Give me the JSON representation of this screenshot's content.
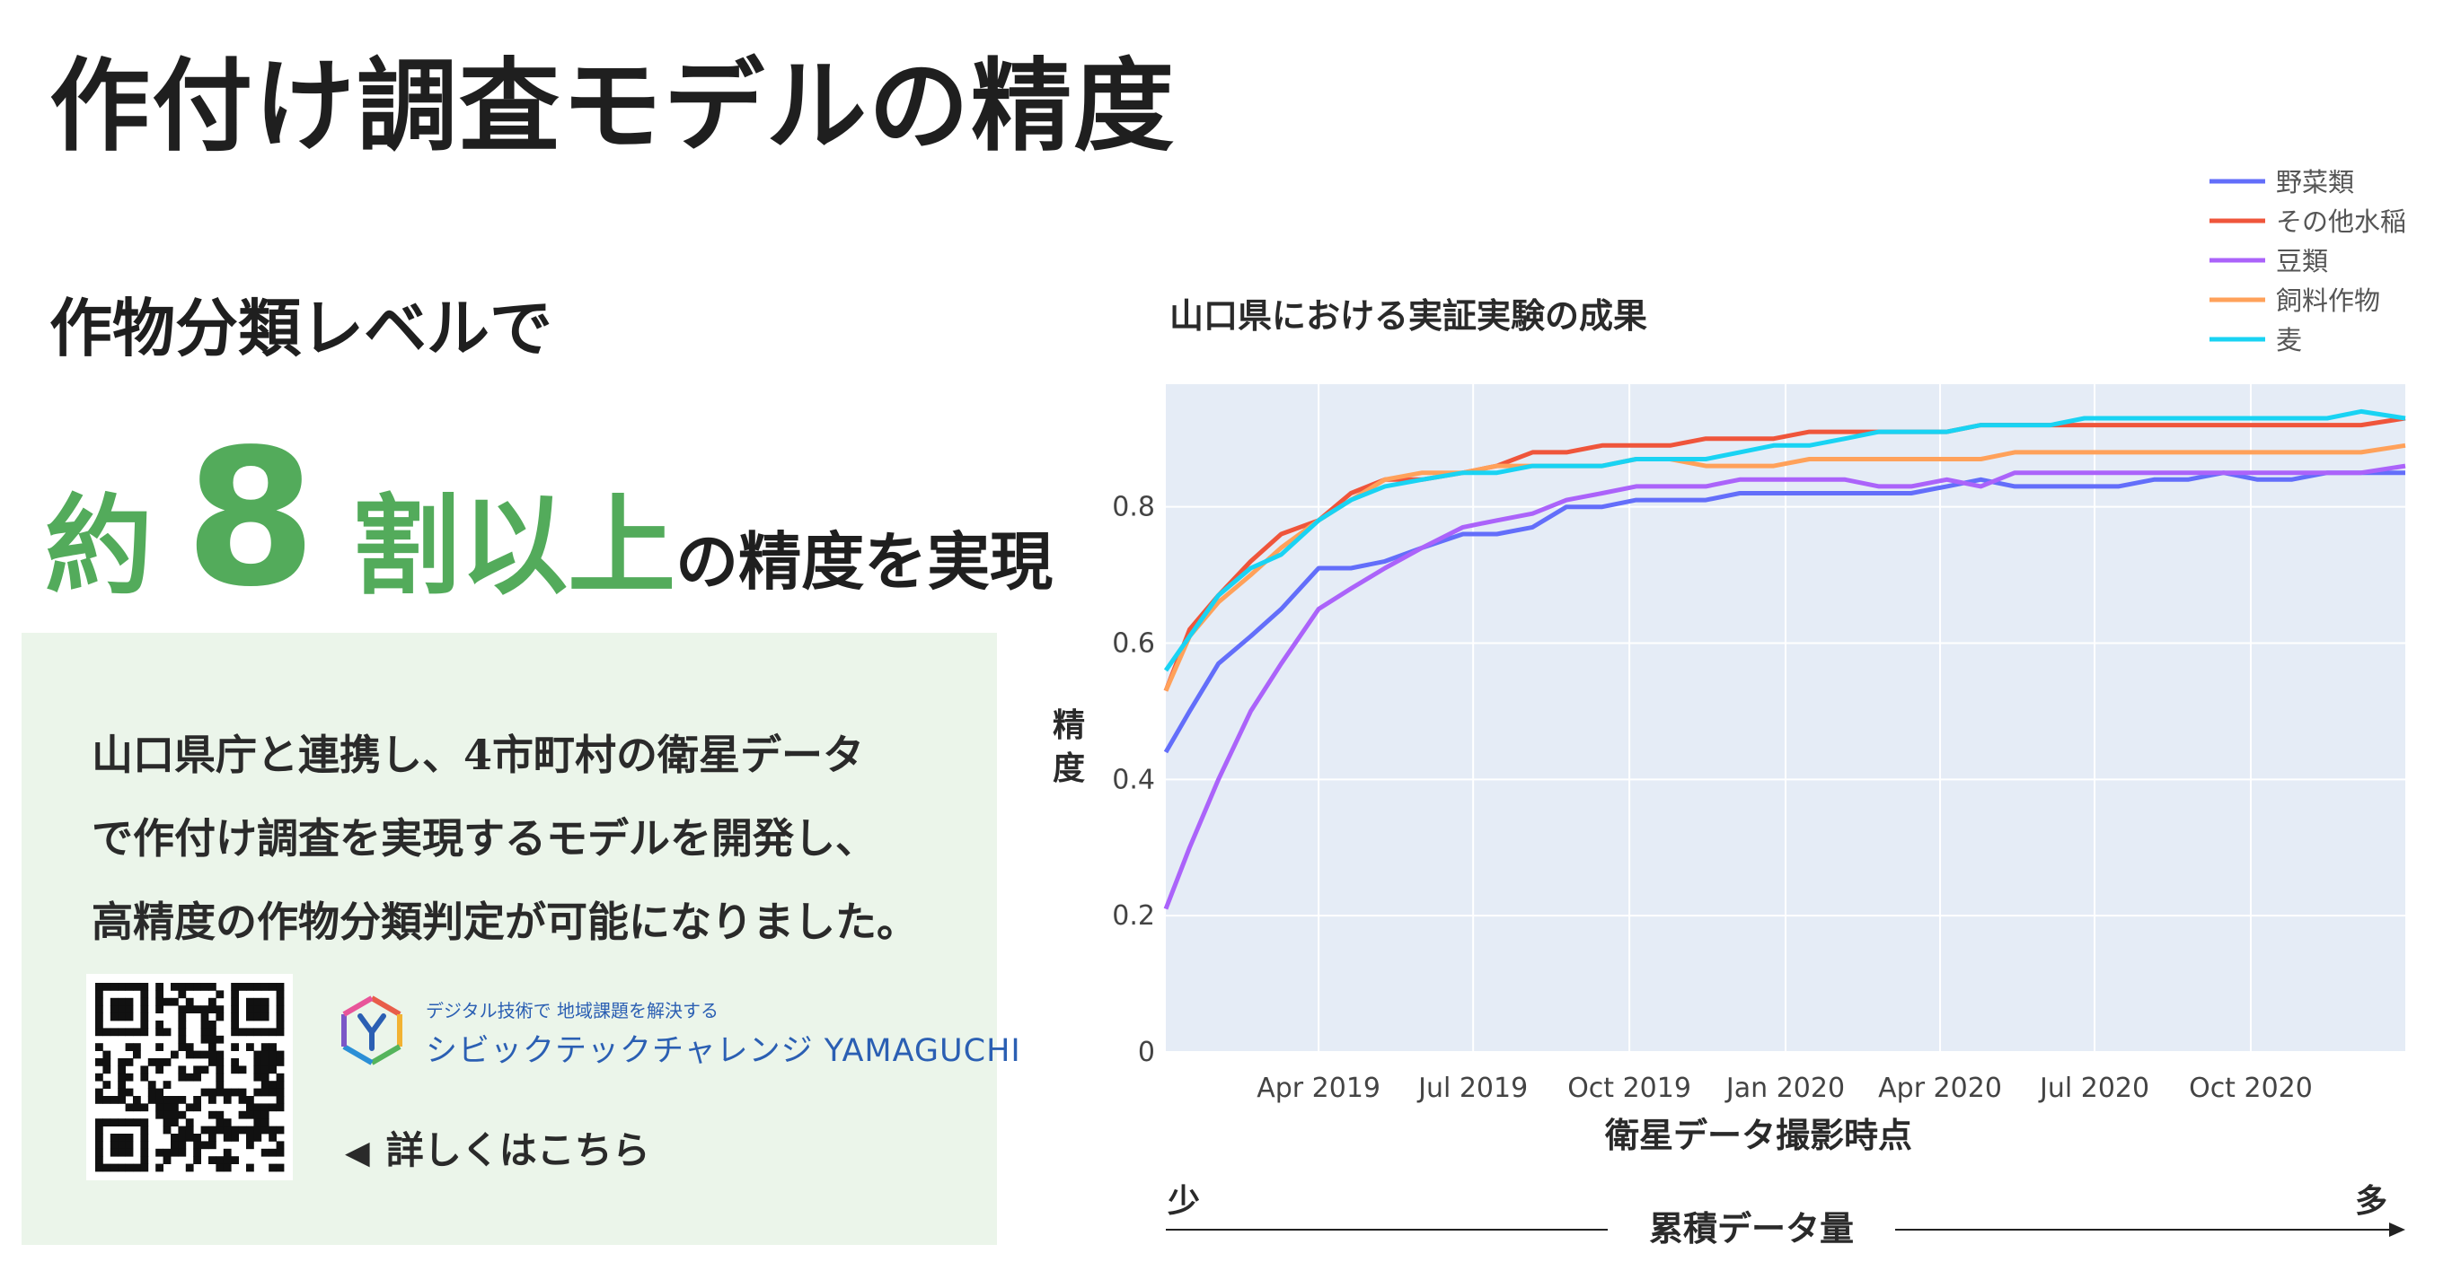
{
  "page": {
    "title": "作付け調査モデルの精度",
    "lead": "作物分類レベルで",
    "headline_prefix": "約",
    "headline_number": "8",
    "headline_unit": "割以上",
    "headline_suffix": "の精度を実現",
    "description_lines": [
      "山口県庁と連携し、4市町村の衛星データ",
      "で作付け調査を実現するモデルを開発し、",
      "高精度の作物分類判定が可能になりました。"
    ],
    "brand_tagline": "デジタル技術で 地域課題を解決する",
    "brand_name": "シビックテックチャレンジ YAMAGUCHI",
    "more_link": "詳しくはこちら",
    "more_icon": "left-triangle-icon",
    "accent_green": "#53ab5b",
    "brand_blue": "#2b5fb3"
  },
  "chart_data": {
    "type": "line",
    "title": "山口県における実証実験の成果",
    "xlabel": "衛星データ撮影時点",
    "ylabel": "精度",
    "x_ticks": [
      "Apr 2019",
      "Jul 2019",
      "Oct 2019",
      "Jan 2020",
      "Apr 2020",
      "Jul 2020",
      "Oct 2020"
    ],
    "y_ticks": [
      "0",
      "0.2",
      "0.4",
      "0.6",
      "0.8"
    ],
    "ylim": [
      0,
      0.98
    ],
    "x": [
      "2019-01-01",
      "2019-01-15",
      "2019-02-01",
      "2019-02-20",
      "2019-03-10",
      "2019-04-01",
      "2019-04-20",
      "2019-05-10",
      "2019-06-01",
      "2019-06-25",
      "2019-07-15",
      "2019-08-05",
      "2019-08-25",
      "2019-09-15",
      "2019-10-05",
      "2019-10-25",
      "2019-11-15",
      "2019-12-05",
      "2019-12-25",
      "2020-01-15",
      "2020-02-05",
      "2020-02-25",
      "2020-03-15",
      "2020-04-05",
      "2020-04-25",
      "2020-05-15",
      "2020-06-05",
      "2020-06-25",
      "2020-07-15",
      "2020-08-05",
      "2020-08-25",
      "2020-09-15",
      "2020-10-05",
      "2020-10-25",
      "2020-11-15",
      "2020-12-05",
      "2020-12-31"
    ],
    "grid": true,
    "legend_position": "top-right",
    "series": [
      {
        "name": "野菜類",
        "color": "#636efa",
        "values": [
          0.44,
          0.5,
          0.57,
          0.61,
          0.65,
          0.71,
          0.71,
          0.72,
          0.74,
          0.76,
          0.76,
          0.77,
          0.8,
          0.8,
          0.81,
          0.81,
          0.81,
          0.82,
          0.82,
          0.82,
          0.82,
          0.82,
          0.82,
          0.83,
          0.84,
          0.83,
          0.83,
          0.83,
          0.83,
          0.84,
          0.84,
          0.85,
          0.84,
          0.84,
          0.85,
          0.85,
          0.85
        ]
      },
      {
        "name": "その他水稲",
        "color": "#ef553b",
        "values": [
          0.53,
          0.62,
          0.67,
          0.72,
          0.76,
          0.78,
          0.82,
          0.84,
          0.84,
          0.85,
          0.86,
          0.88,
          0.88,
          0.89,
          0.89,
          0.89,
          0.9,
          0.9,
          0.9,
          0.91,
          0.91,
          0.91,
          0.91,
          0.91,
          0.92,
          0.92,
          0.92,
          0.92,
          0.92,
          0.92,
          0.92,
          0.92,
          0.92,
          0.92,
          0.92,
          0.92,
          0.93
        ]
      },
      {
        "name": "豆類",
        "color": "#ab63fa",
        "values": [
          0.21,
          0.3,
          0.4,
          0.5,
          0.57,
          0.65,
          0.68,
          0.71,
          0.74,
          0.77,
          0.78,
          0.79,
          0.81,
          0.82,
          0.83,
          0.83,
          0.83,
          0.84,
          0.84,
          0.84,
          0.84,
          0.83,
          0.83,
          0.84,
          0.83,
          0.85,
          0.85,
          0.85,
          0.85,
          0.85,
          0.85,
          0.85,
          0.85,
          0.85,
          0.85,
          0.85,
          0.86
        ]
      },
      {
        "name": "飼料作物",
        "color": "#ffa15a",
        "values": [
          0.53,
          0.61,
          0.66,
          0.7,
          0.74,
          0.78,
          0.81,
          0.84,
          0.85,
          0.85,
          0.86,
          0.86,
          0.86,
          0.86,
          0.87,
          0.87,
          0.86,
          0.86,
          0.86,
          0.87,
          0.87,
          0.87,
          0.87,
          0.87,
          0.87,
          0.88,
          0.88,
          0.88,
          0.88,
          0.88,
          0.88,
          0.88,
          0.88,
          0.88,
          0.88,
          0.88,
          0.89
        ]
      },
      {
        "name": "麦",
        "color": "#19d3f3",
        "values": [
          0.56,
          0.61,
          0.67,
          0.71,
          0.73,
          0.78,
          0.81,
          0.83,
          0.84,
          0.85,
          0.85,
          0.86,
          0.86,
          0.86,
          0.87,
          0.87,
          0.87,
          0.88,
          0.89,
          0.89,
          0.9,
          0.91,
          0.91,
          0.91,
          0.92,
          0.92,
          0.92,
          0.93,
          0.93,
          0.93,
          0.93,
          0.93,
          0.93,
          0.93,
          0.93,
          0.94,
          0.93
        ]
      }
    ],
    "volume_label": "累積データ量",
    "volume_low": "少",
    "volume_high": "多"
  }
}
